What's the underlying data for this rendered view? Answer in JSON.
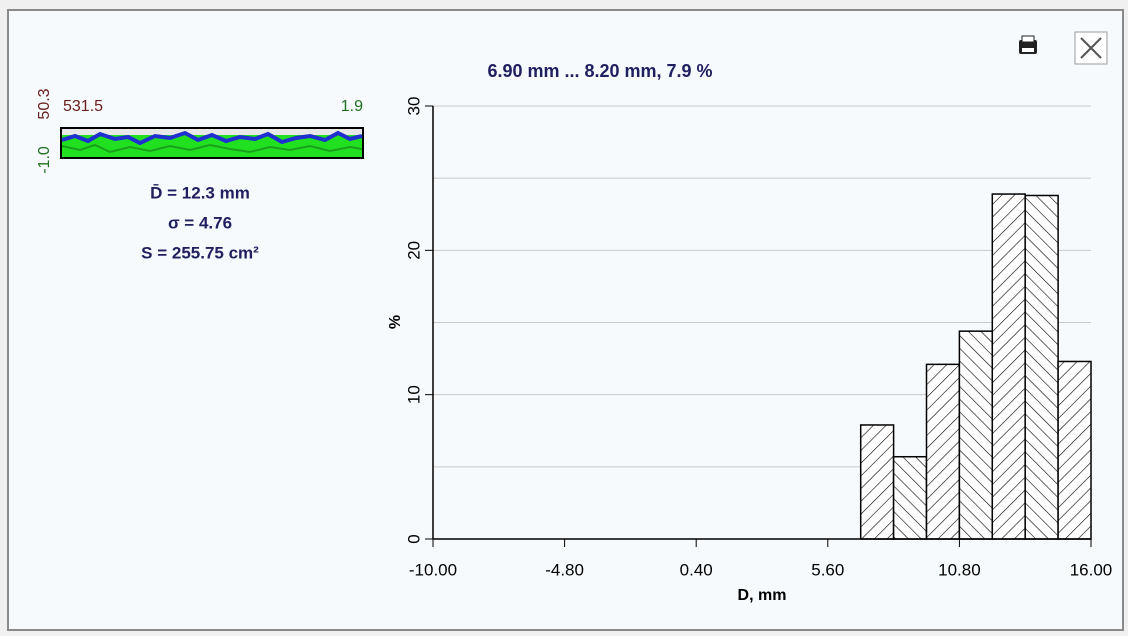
{
  "panel": {
    "strip_top_left": "531.5",
    "strip_top_right": "1.9",
    "strip_max": "50.3",
    "strip_min": "-1.0",
    "stats": [
      "D̄ = 12.3 mm",
      "σ = 4.76",
      "S = 255.75 cm²"
    ]
  },
  "chart_data": {
    "type": "histogram",
    "title": "6.90 mm ... 8.20 mm, 7.9 %",
    "x_label": "D, mm",
    "y_label": "%",
    "bins": [
      6.9,
      8.2,
      9.5,
      10.8,
      12.1,
      13.4,
      14.7,
      16.0
    ],
    "values": [
      7.9,
      5.7,
      12.1,
      14.4,
      23.9,
      23.8,
      12.3
    ],
    "xlim": [
      -10,
      16
    ],
    "xticks": [
      {
        "value": -10,
        "label": "-10.00"
      },
      {
        "value": -4.8,
        "label": "-4.80"
      },
      {
        "value": 0.4,
        "label": "0.40"
      },
      {
        "value": 5.6,
        "label": "5.60"
      },
      {
        "value": 10.8,
        "label": "10.80"
      },
      {
        "value": 16,
        "label": "16.00"
      }
    ],
    "ylim": [
      0,
      30
    ],
    "yticks": [
      0,
      10,
      20,
      30
    ],
    "yminor": [
      5,
      15,
      25
    ],
    "grid": true
  }
}
